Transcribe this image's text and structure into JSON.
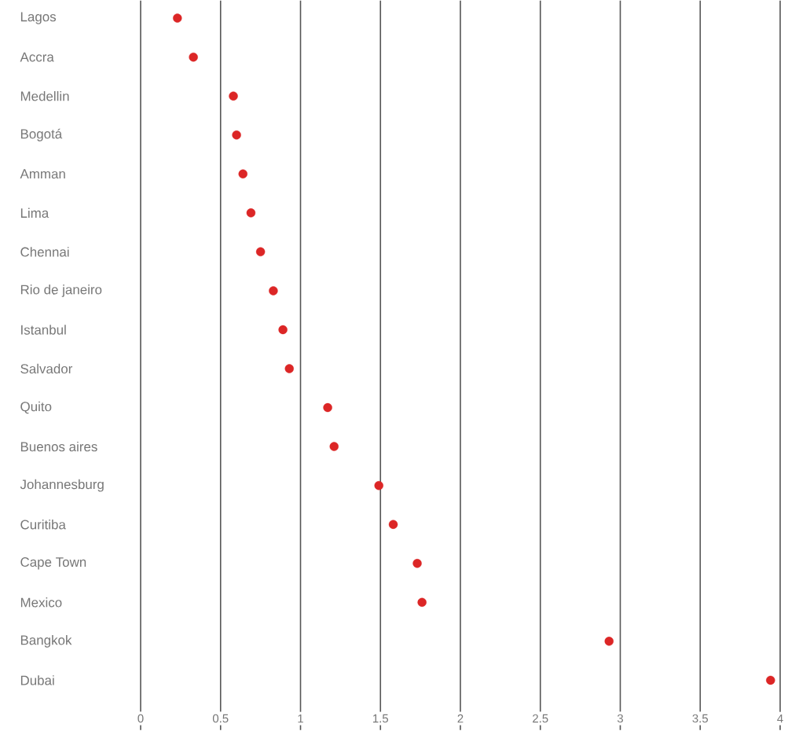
{
  "chart_data": {
    "type": "scatter",
    "orientation": "horizontal",
    "categories": [
      "Lagos",
      "Accra",
      "Medellin",
      "Bogotá",
      "Amman",
      "Lima",
      "Chennai",
      "Rio de janeiro",
      "Istanbul",
      "Salvador",
      "Quito",
      "Buenos aires",
      "Johannesburg",
      "Curitiba",
      "Cape Town",
      "Mexico",
      "Bangkok",
      "Dubai"
    ],
    "values": [
      0.23,
      0.33,
      0.58,
      0.6,
      0.64,
      0.69,
      0.75,
      0.83,
      0.89,
      0.93,
      1.17,
      1.21,
      1.49,
      1.58,
      1.73,
      1.76,
      2.93,
      3.94
    ],
    "color": "#dc2626",
    "marker": "circle",
    "grid": "x",
    "xlim": [
      0,
      4
    ],
    "xticks": [
      0,
      0.5,
      1,
      1.5,
      2,
      2.5,
      3,
      3.5,
      4
    ]
  }
}
